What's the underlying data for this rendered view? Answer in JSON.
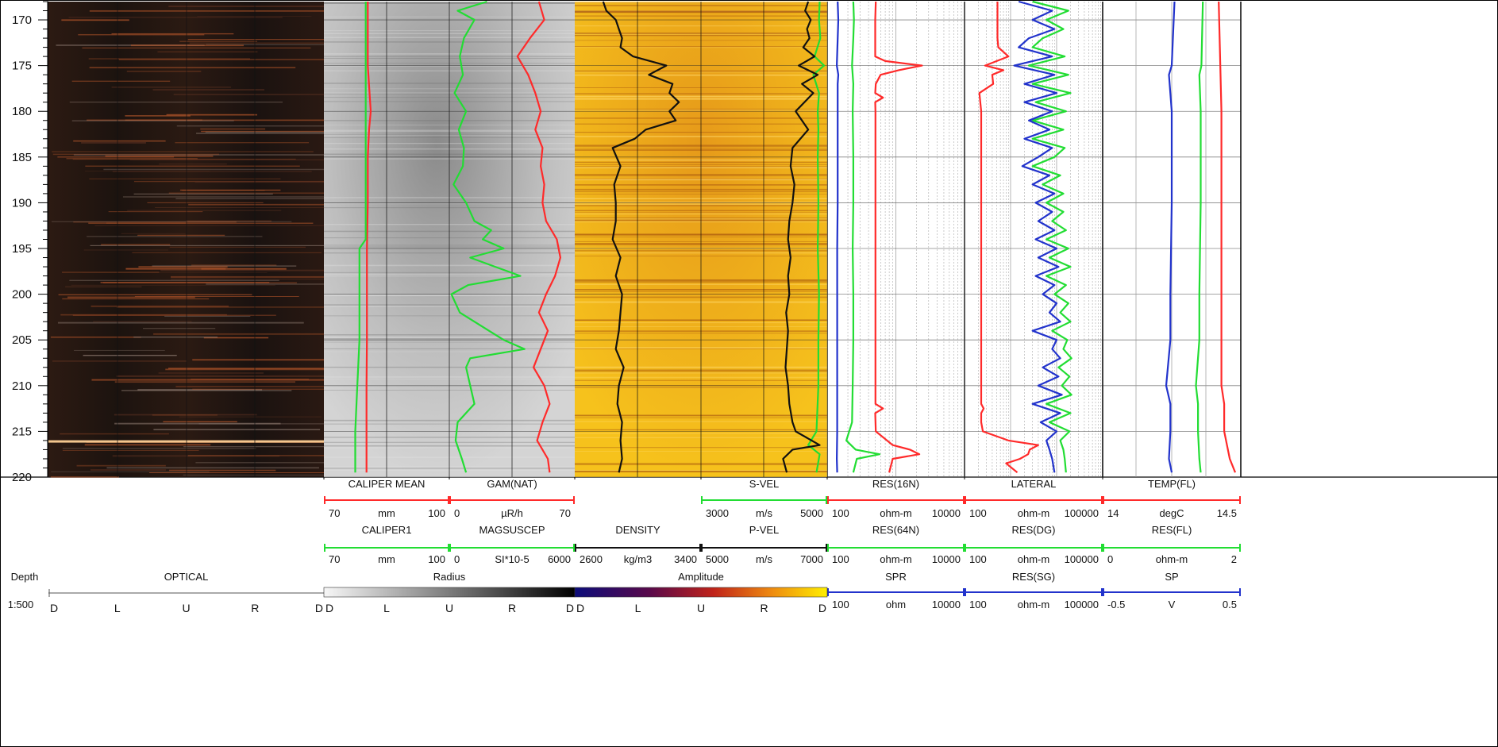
{
  "chart_data": {
    "type": "line",
    "title": "",
    "depth": {
      "header_label": "Depth",
      "scale": "1:500",
      "range": [
        168,
        220
      ],
      "ticks": [
        170,
        175,
        180,
        185,
        190,
        195,
        200,
        205,
        210,
        215,
        220
      ]
    },
    "image_tracks": [
      {
        "name": "OPTICAL",
        "color_bar_label": "",
        "orientation": [
          "D",
          "L",
          "U",
          "R",
          "D"
        ]
      },
      {
        "name": "Radius",
        "color_bar_label": "Radius",
        "orientation": [
          "D",
          "L",
          "U",
          "R",
          "D"
        ],
        "colors": [
          "#f7f7f7",
          "#000000"
        ]
      },
      {
        "name": "Amplitude",
        "color_bar_label": "Amplitude",
        "orientation": [
          "D",
          "L",
          "U",
          "R",
          "D"
        ],
        "colors": [
          "#0c0c7a",
          "#5a0a4a",
          "#c0231a",
          "#ee8a10",
          "#ffef00"
        ]
      }
    ],
    "headers": [
      {
        "column": 1,
        "row": 1,
        "name": "CALIPER MEAN",
        "color": "#ff2a2a",
        "min": "70",
        "unit": "mm",
        "max": "100"
      },
      {
        "column": 1,
        "row": 2,
        "name": "CALIPER1",
        "color": "#22dd33",
        "min": "70",
        "unit": "mm",
        "max": "100"
      },
      {
        "column": 2,
        "row": 1,
        "name": "GAM(NAT)",
        "color": "#ff2a2a",
        "min": "0",
        "unit": "µR/h",
        "max": "70"
      },
      {
        "column": 2,
        "row": 2,
        "name": "MAGSUSCEP",
        "color": "#22dd33",
        "min": "0",
        "unit": "SI*10-5",
        "max": "6000"
      },
      {
        "column": 3,
        "row": 2,
        "name": "DENSITY",
        "color": "#111111",
        "min": "2600",
        "unit": "kg/m3",
        "max": "3400"
      },
      {
        "column": 4,
        "row": 1,
        "name": "S-VEL",
        "color": "#22dd33",
        "min": "3000",
        "unit": "m/s",
        "max": "5000"
      },
      {
        "column": 4,
        "row": 2,
        "name": "P-VEL",
        "color": "#111111",
        "min": "5000",
        "unit": "m/s",
        "max": "7000"
      },
      {
        "column": 5,
        "row": 1,
        "name": "RES(16N)",
        "color": "#ff2a2a",
        "min": "100",
        "unit": "ohm-m",
        "max": "10000"
      },
      {
        "column": 5,
        "row": 2,
        "name": "RES(64N)",
        "color": "#22dd33",
        "min": "100",
        "unit": "ohm-m",
        "max": "10000"
      },
      {
        "column": 5,
        "row": 3,
        "name": "SPR",
        "color": "#2233cc",
        "min": "100",
        "unit": "ohm",
        "max": "10000"
      },
      {
        "column": 6,
        "row": 1,
        "name": "LATERAL",
        "color": "#ff2a2a",
        "min": "100",
        "unit": "ohm-m",
        "max": "100000"
      },
      {
        "column": 6,
        "row": 2,
        "name": "RES(DG)",
        "color": "#22dd33",
        "min": "100",
        "unit": "ohm-m",
        "max": "100000"
      },
      {
        "column": 6,
        "row": 3,
        "name": "RES(SG)",
        "color": "#2233cc",
        "min": "100",
        "unit": "ohm-m",
        "max": "100000"
      },
      {
        "column": 7,
        "row": 1,
        "name": "TEMP(FL)",
        "color": "#ff2a2a",
        "min": "14",
        "unit": "degC",
        "max": "14.5"
      },
      {
        "column": 7,
        "row": 2,
        "name": "RES(FL)",
        "color": "#22dd33",
        "min": "0",
        "unit": "ohm-m",
        "max": "2"
      },
      {
        "column": 7,
        "row": 3,
        "name": "SP",
        "color": "#2233cc",
        "min": "-0.5",
        "unit": "V",
        "max": "0.5"
      }
    ],
    "series": [
      {
        "name": "CALIPER MEAN",
        "depth": [
          168,
          175,
          180,
          182,
          185,
          190,
          195,
          200,
          205,
          210,
          215,
          219.5
        ],
        "values": [
          80.5,
          80.5,
          81.2,
          80.8,
          80.5,
          80.5,
          80.3,
          80.3,
          80.3,
          80.2,
          80.2,
          80.2
        ]
      },
      {
        "name": "CALIPER1",
        "depth": [
          168,
          175,
          180,
          185,
          190,
          194,
          195,
          200,
          205,
          210,
          215,
          219.5
        ],
        "values": [
          80,
          80,
          80,
          80,
          80,
          80,
          78.5,
          78.5,
          78.5,
          78,
          77.5,
          77.5
        ]
      },
      {
        "name": "GAM(NAT)",
        "depth": [
          168,
          170,
          172,
          174,
          176,
          178,
          180,
          182,
          184,
          186,
          188,
          190,
          192,
          194,
          196,
          198,
          200,
          202,
          204,
          206,
          208,
          210,
          212,
          214,
          216,
          218,
          219.5
        ],
        "values": [
          50,
          53,
          45,
          38,
          44,
          48,
          51,
          48,
          52,
          51,
          53,
          52,
          54,
          60,
          62,
          59,
          54,
          50,
          55,
          51,
          47,
          53,
          56,
          52,
          49,
          55,
          56
        ]
      },
      {
        "name": "MAGSUSCEP",
        "depth": [
          168,
          169,
          170,
          172,
          174,
          176,
          178,
          180,
          182,
          184,
          186,
          188,
          190,
          192,
          193,
          194,
          195,
          196,
          197,
          198,
          199,
          200,
          202,
          203,
          204,
          205,
          206,
          207,
          208,
          210,
          212,
          214,
          216,
          218,
          219.5
        ],
        "values": [
          1800,
          400,
          1200,
          700,
          500,
          650,
          250,
          800,
          450,
          700,
          650,
          200,
          800,
          1200,
          2000,
          1600,
          2600,
          1000,
          2200,
          3400,
          900,
          100,
          500,
          1200,
          1900,
          2600,
          3600,
          1000,
          800,
          1000,
          1200,
          400,
          300,
          600,
          800
        ]
      },
      {
        "name": "DENSITY",
        "depth": [
          168,
          169,
          170,
          171,
          172,
          173,
          174,
          175,
          176,
          177,
          178,
          179,
          180,
          181,
          182,
          183,
          184,
          186,
          188,
          190,
          192,
          194,
          196,
          198,
          200,
          202,
          204,
          206,
          208,
          210,
          212,
          214,
          216,
          218,
          219.5
        ],
        "values": [
          2780,
          2800,
          2860,
          2880,
          2900,
          2890,
          2970,
          3180,
          3070,
          3220,
          3200,
          3260,
          3200,
          3240,
          3050,
          2980,
          2840,
          2890,
          2850,
          2860,
          2860,
          2840,
          2890,
          2860,
          2900,
          2890,
          2880,
          2860,
          2910,
          2880,
          2870,
          2900,
          2890,
          2900,
          2880
        ]
      },
      {
        "name": "S-VEL",
        "depth": [
          168,
          170,
          172,
          174,
          175,
          176,
          178,
          180,
          182,
          185,
          190,
          195,
          200,
          205,
          210,
          215,
          216.5,
          217.5,
          219.5
        ],
        "values": [
          4880,
          4870,
          4890,
          4800,
          4950,
          4780,
          4870,
          4850,
          4860,
          4850,
          4860,
          4850,
          4870,
          4860,
          4860,
          4830,
          4700,
          4880,
          4830
        ]
      },
      {
        "name": "P-VEL",
        "depth": [
          168,
          169,
          170,
          171,
          172,
          173,
          174,
          175,
          176,
          177,
          178,
          180,
          182,
          184,
          186,
          188,
          190,
          192,
          194,
          196,
          198,
          200,
          202,
          204,
          206,
          208,
          210,
          212,
          214,
          215,
          216.5,
          217,
          218,
          219.5
        ],
        "values": [
          6700,
          6650,
          6740,
          6680,
          6720,
          6620,
          6800,
          6550,
          6850,
          6600,
          6780,
          6500,
          6700,
          6450,
          6420,
          6480,
          6450,
          6400,
          6380,
          6420,
          6380,
          6400,
          6350,
          6380,
          6360,
          6340,
          6380,
          6400,
          6450,
          6500,
          6880,
          6450,
          6300,
          6360
        ]
      },
      {
        "name": "RES(16N)",
        "depth": [
          168,
          170,
          174,
          174.5,
          175,
          175.5,
          176,
          177,
          178,
          178.5,
          179,
          180,
          190,
          200,
          210,
          212,
          212.5,
          213,
          215,
          216.5,
          217,
          217.5,
          218,
          219.5
        ],
        "values": [
          510,
          500,
          500,
          700,
          2400,
          1100,
          600,
          510,
          500,
          650,
          500,
          505,
          505,
          505,
          505,
          505,
          650,
          500,
          510,
          900,
          1600,
          2200,
          900,
          800
        ]
      },
      {
        "name": "RES(64N)",
        "depth": [
          168,
          170,
          172,
          175,
          177,
          180,
          185,
          190,
          195,
          200,
          205,
          210,
          214,
          216,
          217,
          217.5,
          218,
          219.5
        ],
        "values": [
          240,
          245,
          240,
          230,
          240,
          235,
          240,
          240,
          235,
          240,
          240,
          235,
          230,
          190,
          260,
          580,
          270,
          240
        ]
      },
      {
        "name": "SPR",
        "depth": [
          168,
          170,
          175,
          176,
          177,
          180,
          185,
          190,
          195,
          200,
          205,
          210,
          215,
          218,
          219.5
        ],
        "values": [
          142,
          145,
          138,
          145,
          142,
          142,
          142,
          142,
          140,
          140,
          140,
          140,
          140,
          138,
          140
        ]
      },
      {
        "name": "LATERAL",
        "depth": [
          168,
          170,
          172,
          173,
          174,
          175,
          175.5,
          176,
          177,
          178,
          180,
          182,
          190,
          200,
          210,
          212,
          212.5,
          213,
          214,
          215,
          216,
          216.5,
          217,
          217.5,
          218,
          218.5,
          219.5
        ],
        "values": [
          520,
          520,
          520,
          540,
          900,
          280,
          700,
          400,
          420,
          210,
          230,
          230,
          230,
          230,
          230,
          230,
          260,
          230,
          230,
          250,
          900,
          4000,
          2600,
          2400,
          1600,
          800,
          1400
        ]
      },
      {
        "name": "RES(DG)",
        "depth": [
          168,
          169,
          170,
          171,
          172,
          173,
          174,
          175,
          176,
          177,
          178,
          179,
          180,
          181,
          182,
          183,
          184,
          185,
          186,
          187,
          188,
          189,
          190,
          191,
          192,
          193,
          194,
          195,
          196,
          197,
          198,
          199,
          200,
          201,
          202,
          203,
          204,
          205,
          206,
          207,
          208,
          209,
          210,
          211,
          212,
          213,
          214,
          215,
          216,
          217,
          218,
          219.5
        ],
        "values": [
          3000,
          18000,
          6000,
          14000,
          5000,
          3000,
          15000,
          2500,
          18000,
          3000,
          20000,
          3500,
          16000,
          3000,
          14000,
          3000,
          15000,
          9000,
          3000,
          12000,
          5000,
          14000,
          6000,
          14000,
          8000,
          16000,
          6000,
          18000,
          7000,
          20000,
          6000,
          16000,
          9000,
          18000,
          12000,
          20000,
          8000,
          17000,
          14000,
          21000,
          11000,
          19000,
          13000,
          21000,
          6000,
          20000,
          7000,
          19000,
          12000,
          14000,
          15000,
          16000
        ]
      },
      {
        "name": "RES(SG)",
        "depth": [
          168,
          169,
          170,
          171,
          172,
          173,
          174,
          175,
          176,
          177,
          178,
          179,
          180,
          181,
          182,
          183,
          184,
          185,
          186,
          187,
          188,
          189,
          190,
          191,
          192,
          193,
          194,
          195,
          196,
          197,
          198,
          199,
          200,
          201,
          202,
          203,
          204,
          205,
          206,
          207,
          208,
          209,
          210,
          211,
          212,
          213,
          214,
          215,
          216,
          217,
          218,
          219.5
        ],
        "values": [
          1500,
          8000,
          3000,
          9000,
          2500,
          1500,
          8000,
          1200,
          9000,
          2000,
          10000,
          2000,
          8000,
          2500,
          7000,
          2000,
          8000,
          4000,
          1800,
          7000,
          3000,
          9000,
          3500,
          8000,
          4000,
          9000,
          3500,
          10000,
          4000,
          11000,
          3500,
          9000,
          5000,
          10000,
          7000,
          12000,
          3000,
          10000,
          8000,
          12000,
          5000,
          11000,
          4000,
          13000,
          3000,
          12000,
          4500,
          10000,
          6000,
          7000,
          8000,
          9000
        ]
      },
      {
        "name": "TEMP(FL)",
        "depth": [
          168,
          180,
          190,
          200,
          205,
          210,
          212,
          215,
          218,
          219.5
        ],
        "values": [
          14.42,
          14.43,
          14.43,
          14.43,
          14.43,
          14.43,
          14.44,
          14.44,
          14.46,
          14.48
        ]
      },
      {
        "name": "RES(FL)",
        "depth": [
          168,
          175,
          176,
          180,
          190,
          200,
          205,
          210,
          212,
          215,
          218,
          219.5
        ],
        "values": [
          1.45,
          1.43,
          1.4,
          1.42,
          1.42,
          1.4,
          1.4,
          1.35,
          1.38,
          1.38,
          1.4,
          1.42
        ]
      },
      {
        "name": "SP",
        "depth": [
          168,
          175,
          176,
          180,
          190,
          200,
          205,
          210,
          212,
          215,
          218,
          219.5
        ],
        "values": [
          0.02,
          0.0,
          -0.02,
          0.0,
          0.0,
          -0.01,
          -0.01,
          -0.04,
          -0.01,
          -0.01,
          -0.02,
          0.0
        ]
      }
    ]
  }
}
